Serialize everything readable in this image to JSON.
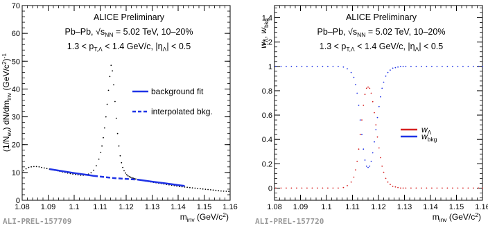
{
  "chart_data": [
    {
      "type": "scatter",
      "panel": "left",
      "annotations": {
        "collab": "ALICE Preliminary",
        "system": "Pb–Pb, √s",
        "system_sub": "NN",
        "system_rest": " = 5.02 TeV, 10–20%",
        "kin_a": "1.3 < p",
        "kin_sub": "T,Λ",
        "kin_b": " < 1.4 GeV/c, |η",
        "kin_sub2": "Λ",
        "kin_c": "| < 0.5"
      },
      "ylabel": "(1/N_ev) dN/dm_inv (GeV/c²)⁻¹",
      "ylabel_parts": {
        "a": "(1/N",
        "sub1": "ev",
        "b": ") dN/dm",
        "sub2": "inv",
        "c": " (GeV/c",
        "sup1": "2",
        "d": ")",
        "sup2": "-1"
      },
      "xlabel_parts": {
        "a": "m",
        "sub": "inv",
        "b": " (GeV/c",
        "sup": "2",
        "c": ")"
      },
      "footer": "ALI-PREL-157709",
      "xlim": [
        1.08,
        1.16
      ],
      "ylim": [
        0,
        70
      ],
      "x_ticks": [
        "1.08",
        "1.09",
        "1.1",
        "1.11",
        "1.12",
        "1.13",
        "1.14",
        "1.15",
        "1.16"
      ],
      "y_ticks": [
        "0",
        "10",
        "20",
        "30",
        "40",
        "50",
        "60",
        "70"
      ],
      "legend": [
        {
          "label": "background fit",
          "style": "solid",
          "color": "#1f33e6"
        },
        {
          "label": "interpolated bkg.",
          "style": "dashed",
          "color": "#1f33e6"
        }
      ],
      "series": [
        {
          "role": "data",
          "color": "#000000",
          "x": [
            1.0805,
            1.0815,
            1.0825,
            1.0835,
            1.0845,
            1.0855,
            1.0865,
            1.0875,
            1.0885,
            1.0895,
            1.0905,
            1.0915,
            1.0925,
            1.0935,
            1.0945,
            1.0955,
            1.0965,
            1.0975,
            1.0985,
            1.0995,
            1.1005,
            1.1015,
            1.1025,
            1.1035,
            1.1045,
            1.1055,
            1.1065,
            1.1075,
            1.1085,
            1.1095,
            1.1102,
            1.1107,
            1.1112,
            1.1117,
            1.1122,
            1.1127,
            1.1132,
            1.1137,
            1.1142,
            1.1147,
            1.1152,
            1.1157,
            1.1162,
            1.1167,
            1.1172,
            1.1177,
            1.1182,
            1.1187,
            1.1192,
            1.1197,
            1.1202,
            1.1207,
            1.1212,
            1.1217,
            1.1222,
            1.1227,
            1.1232,
            1.1237,
            1.1245,
            1.1255,
            1.1265,
            1.1275,
            1.1285,
            1.1295,
            1.1305,
            1.1315,
            1.1325,
            1.1335,
            1.1345,
            1.1355,
            1.1365,
            1.1375,
            1.1385,
            1.1395,
            1.1405,
            1.1415,
            1.1425,
            1.1435,
            1.1445,
            1.1455,
            1.1465,
            1.1475,
            1.1485,
            1.1495,
            1.1505,
            1.1515,
            1.1525,
            1.1535,
            1.1545,
            1.1555,
            1.1565,
            1.1575,
            1.1585,
            1.1595
          ],
          "y": [
            10.6,
            11.3,
            11.8,
            12.0,
            12.1,
            12.1,
            12.0,
            11.8,
            11.6,
            11.4,
            11.2,
            11.0,
            10.8,
            10.6,
            10.4,
            10.2,
            10.0,
            9.8,
            9.6,
            9.45,
            9.3,
            9.15,
            9.0,
            9.0,
            9.1,
            9.4,
            9.9,
            10.8,
            12.4,
            14.8,
            17.2,
            19.5,
            22.5,
            26.0,
            30.0,
            34.5,
            39.5,
            44.5,
            48.5,
            46.5,
            41.5,
            35.5,
            29.5,
            24.0,
            19.5,
            16.0,
            13.5,
            11.8,
            10.6,
            9.8,
            9.2,
            8.8,
            8.5,
            8.3,
            8.1,
            7.95,
            7.8,
            7.65,
            7.5,
            7.3,
            7.1,
            6.9,
            6.75,
            6.6,
            6.45,
            6.3,
            6.15,
            6.0,
            5.85,
            5.7,
            5.55,
            5.4,
            5.25,
            5.1,
            4.95,
            4.85,
            4.75,
            4.65,
            4.55,
            4.45,
            4.35,
            4.25,
            4.15,
            4.05,
            3.95,
            3.85,
            3.75,
            3.65,
            3.55,
            3.45,
            3.35,
            3.3,
            3.25,
            3.2
          ]
        },
        {
          "role": "background fit",
          "style": "solid",
          "color": "#1f33e6",
          "x": [
            1.0905,
            1.1,
            1.1075
          ],
          "y": [
            11.2,
            9.8,
            8.8
          ]
        },
        {
          "role": "background fit",
          "style": "solid",
          "color": "#1f33e6",
          "x": [
            1.1245,
            1.13,
            1.135,
            1.14,
            1.1425
          ],
          "y": [
            7.4,
            6.7,
            6.1,
            5.45,
            5.15
          ]
        },
        {
          "role": "interpolated bkg.",
          "style": "dashed",
          "color": "#1f33e6",
          "x": [
            1.1075,
            1.115,
            1.1245
          ],
          "y": [
            8.8,
            8.0,
            7.4
          ]
        }
      ]
    },
    {
      "type": "scatter",
      "panel": "right",
      "annotations": {
        "collab": "ALICE Preliminary",
        "system": "Pb–Pb, √s",
        "system_sub": "NN",
        "system_rest": " = 5.02 TeV, 10–20%",
        "kin_a": "1.3 < p",
        "kin_sub": "T,Λ",
        "kin_b": " < 1.4 GeV/c, |η",
        "kin_sub2": "Λ",
        "kin_c": "| < 0.5"
      },
      "ylabel_parts": {
        "w1": "w",
        "sub1": "Λ",
        "sep": ", ",
        "w2": "w",
        "sub2": "bkg"
      },
      "xlabel_parts": {
        "a": "m",
        "sub": "inv",
        "b": " (GeV/c",
        "sup": "2",
        "c": ")"
      },
      "footer": "ALI-PREL-157720",
      "xlim": [
        1.08,
        1.16
      ],
      "ylim": [
        -0.1,
        1.5
      ],
      "x_ticks": [
        "1.08",
        "1.09",
        "1.1",
        "1.11",
        "1.12",
        "1.13",
        "1.14",
        "1.15",
        "1.16"
      ],
      "y_ticks": [
        "0",
        "0.2",
        "0.4",
        "0.6",
        "0.8",
        "1",
        "1.2",
        "1.4"
      ],
      "legend": [
        {
          "w": "w",
          "sub": "Λ",
          "color": "#d62020"
        },
        {
          "w": "w",
          "sub": "bkg",
          "color": "#1f33e6"
        }
      ],
      "series": [
        {
          "name": "w_Λ",
          "color": "#d62020",
          "x": [
            1.0805,
            1.0825,
            1.0845,
            1.0865,
            1.0885,
            1.0905,
            1.0925,
            1.0945,
            1.0965,
            1.0985,
            1.1005,
            1.1025,
            1.1045,
            1.1065,
            1.108,
            1.1095,
            1.1105,
            1.1112,
            1.1118,
            1.1124,
            1.113,
            1.1136,
            1.1142,
            1.1148,
            1.1154,
            1.116,
            1.1166,
            1.1172,
            1.1178,
            1.1184,
            1.119,
            1.1196,
            1.1202,
            1.1208,
            1.1214,
            1.122,
            1.1228,
            1.1236,
            1.1245,
            1.1255,
            1.1265,
            1.1275,
            1.1285,
            1.1295,
            1.1305,
            1.1325,
            1.1345,
            1.1365,
            1.1385,
            1.1405,
            1.1425,
            1.1445,
            1.1465,
            1.1485,
            1.1505,
            1.1525,
            1.1545,
            1.1565,
            1.1585,
            1.16
          ],
          "y": [
            0.0,
            0.0,
            0.0,
            0.0,
            0.0,
            0.0,
            0.0,
            0.0,
            0.0,
            0.0,
            0.0,
            0.0,
            0.0,
            0.005,
            0.02,
            0.05,
            0.09,
            0.15,
            0.22,
            0.32,
            0.44,
            0.56,
            0.68,
            0.77,
            0.82,
            0.83,
            0.82,
            0.78,
            0.71,
            0.62,
            0.52,
            0.42,
            0.33,
            0.25,
            0.18,
            0.13,
            0.08,
            0.05,
            0.03,
            0.015,
            0.01,
            0.005,
            0.0,
            0.0,
            0.0,
            0.0,
            0.0,
            0.0,
            0.0,
            0.0,
            0.0,
            0.0,
            0.0,
            0.0,
            0.0,
            0.0,
            0.0,
            0.0,
            0.0,
            0.0
          ]
        },
        {
          "name": "w_bkg",
          "color": "#1f33e6",
          "x": [
            1.0805,
            1.0825,
            1.0845,
            1.0865,
            1.0885,
            1.0905,
            1.0925,
            1.0945,
            1.0965,
            1.0985,
            1.1005,
            1.1025,
            1.1045,
            1.1065,
            1.108,
            1.1095,
            1.1105,
            1.1112,
            1.1118,
            1.1124,
            1.113,
            1.1136,
            1.1142,
            1.1148,
            1.1154,
            1.116,
            1.1166,
            1.1172,
            1.1178,
            1.1184,
            1.119,
            1.1196,
            1.1202,
            1.1208,
            1.1214,
            1.122,
            1.1228,
            1.1236,
            1.1245,
            1.1255,
            1.1265,
            1.1275,
            1.1285,
            1.1295,
            1.1305,
            1.1325,
            1.1345,
            1.1365,
            1.1385,
            1.1405,
            1.1425,
            1.1445,
            1.1465,
            1.1485,
            1.1505,
            1.1525,
            1.1545,
            1.1565,
            1.1585,
            1.16
          ],
          "y": [
            1.0,
            1.0,
            1.0,
            1.0,
            1.0,
            1.0,
            1.0,
            1.0,
            1.0,
            1.0,
            1.0,
            1.0,
            1.0,
            0.995,
            0.98,
            0.95,
            0.91,
            0.85,
            0.78,
            0.68,
            0.56,
            0.44,
            0.32,
            0.23,
            0.18,
            0.17,
            0.18,
            0.22,
            0.29,
            0.38,
            0.48,
            0.58,
            0.67,
            0.75,
            0.82,
            0.87,
            0.92,
            0.95,
            0.97,
            0.985,
            0.99,
            0.995,
            1.0,
            1.0,
            1.0,
            1.0,
            1.0,
            1.0,
            1.0,
            1.0,
            1.0,
            1.0,
            1.0,
            1.0,
            1.0,
            1.0,
            1.0,
            1.0,
            1.0,
            1.0
          ]
        }
      ]
    }
  ]
}
